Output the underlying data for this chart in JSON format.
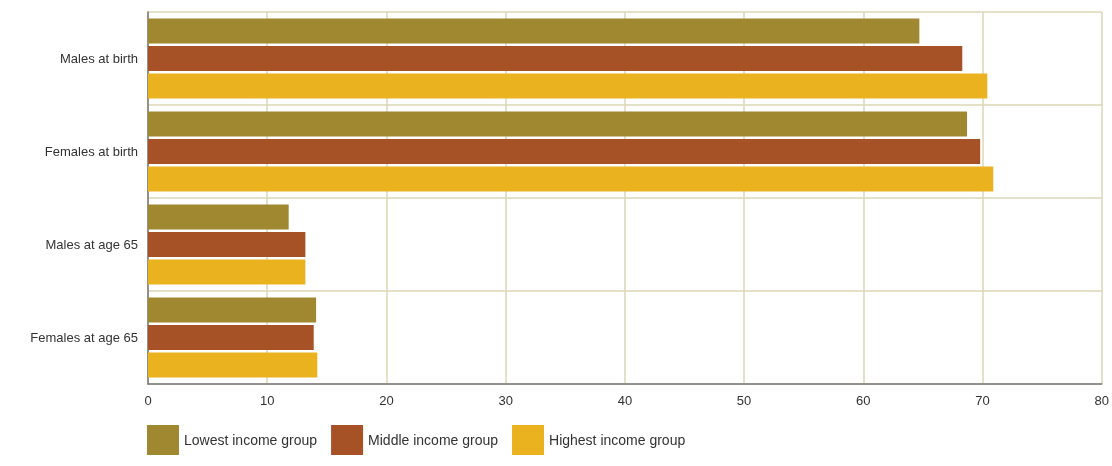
{
  "chart_data": {
    "type": "bar",
    "orientation": "horizontal",
    "categories": [
      "Males at birth",
      "Females at birth",
      "Males at age 65",
      "Females at age 65"
    ],
    "series": [
      {
        "name": "Lowest income group",
        "color": "#a08830",
        "values": [
          64.7,
          68.7,
          11.8,
          14.1
        ]
      },
      {
        "name": "Middle income group",
        "color": "#a65126",
        "values": [
          68.3,
          69.8,
          13.2,
          13.9
        ]
      },
      {
        "name": "Highest income group",
        "color": "#ebb220",
        "values": [
          70.4,
          70.9,
          13.2,
          14.2
        ]
      }
    ],
    "xlim": [
      0,
      80
    ],
    "xticks": [
      0,
      10,
      20,
      30,
      40,
      50,
      60,
      70,
      80
    ],
    "grid": true,
    "legend": "bottom left"
  }
}
